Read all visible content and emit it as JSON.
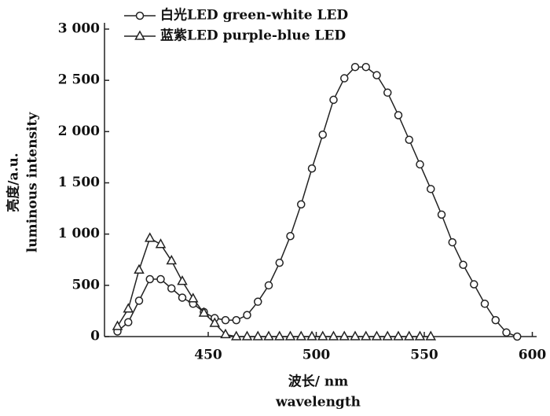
{
  "chart_data": {
    "type": "line",
    "x_label": "波长/ nm",
    "x_label_2": "wavelength",
    "y_label": "亮度/a.u.",
    "y_label_2": "luminous intensity",
    "x": [
      408,
      413,
      418,
      423,
      428,
      433,
      438,
      443,
      448,
      453,
      458,
      463,
      468,
      473,
      478,
      483,
      488,
      493,
      498,
      503,
      508,
      513,
      518,
      523,
      528,
      533,
      538,
      543,
      548,
      553,
      558,
      563,
      568,
      573,
      578,
      583,
      588,
      593,
      598
    ],
    "series": [
      {
        "name": "白光LED green-white LED",
        "color": "#222",
        "marker": "circle",
        "values": [
          50,
          140,
          350,
          560,
          560,
          470,
          380,
          320,
          240,
          180,
          160,
          160,
          210,
          340,
          500,
          720,
          980,
          1290,
          1640,
          1970,
          2310,
          2520,
          2630,
          2630,
          2550,
          2380,
          2160,
          1920,
          1680,
          1440,
          1190,
          920,
          700,
          510,
          320,
          160,
          40,
          0,
          null
        ]
      },
      {
        "name": "蓝紫LED purple-blue LED",
        "color": "#222",
        "marker": "triangle",
        "values": [
          100,
          270,
          650,
          960,
          900,
          740,
          540,
          370,
          230,
          130,
          20,
          0,
          0,
          0,
          0,
          0,
          0,
          0,
          0,
          0,
          0,
          0,
          0,
          0,
          0,
          0,
          0,
          0,
          0,
          0,
          null,
          null,
          null,
          null,
          null,
          null,
          null,
          null,
          null
        ]
      }
    ],
    "xlim": [
      402,
      602
    ],
    "xticks": [
      450,
      500,
      550,
      600
    ],
    "ylim": [
      0,
      3000
    ],
    "yticks": [
      0,
      500,
      {
        "value": 1000,
        "label": "1 000"
      },
      {
        "value": 1500,
        "label": "1 500"
      },
      {
        "value": 2000,
        "label": "2 000"
      },
      {
        "value": 2500,
        "label": "2 500"
      },
      {
        "value": 3000,
        "label": "3 000"
      }
    ],
    "grid": false,
    "legend": "upper left"
  }
}
